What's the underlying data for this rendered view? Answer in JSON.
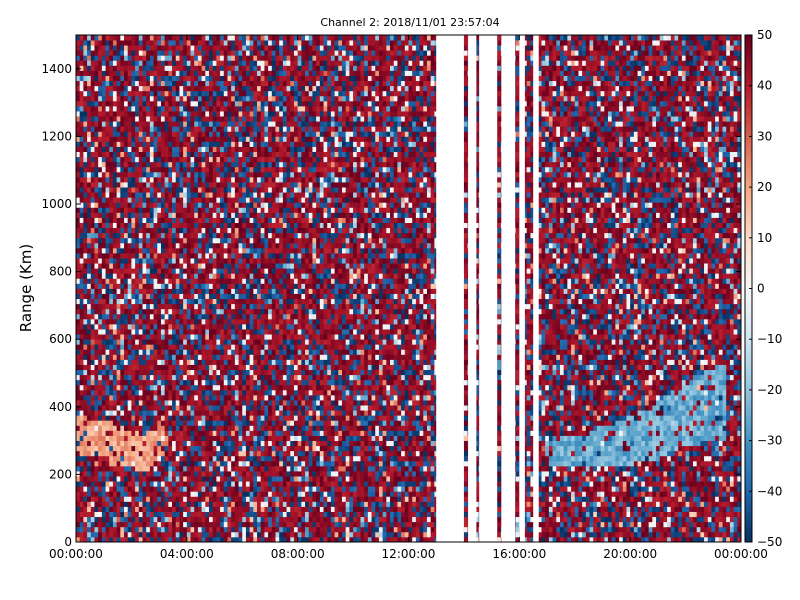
{
  "chart_data": {
    "type": "heatmap",
    "title": "Channel 2: 2018/11/01 23:57:04",
    "xlabel": "",
    "ylabel": "Range (Km)",
    "x_tick_labels": [
      "00:00:00",
      "04:00:00",
      "08:00:00",
      "12:00:00",
      "16:00:00",
      "20:00:00",
      "00:00:00"
    ],
    "x_range_hours": [
      0,
      24
    ],
    "y_ticks": [
      0,
      200,
      400,
      600,
      800,
      1000,
      1200,
      1400
    ],
    "ylim": [
      0,
      1500
    ],
    "colorbar": {
      "colormap": "RdBu_r",
      "range": [
        -50,
        50
      ],
      "ticks": [
        -50,
        -40,
        -30,
        -20,
        -10,
        0,
        10,
        20,
        30,
        40,
        50
      ],
      "colors": [
        "#053061",
        "#2166ac",
        "#4393c3",
        "#92c5de",
        "#d1e5f0",
        "#f7f7f7",
        "#fddbc7",
        "#f4a582",
        "#d6604d",
        "#b2182b",
        "#67001f"
      ]
    },
    "data_gaps_hours": [
      [
        13.0,
        14.0
      ],
      [
        14.15,
        14.45
      ],
      [
        14.55,
        15.2
      ],
      [
        15.35,
        15.85
      ],
      [
        16.0,
        16.2
      ],
      [
        16.5,
        16.7
      ]
    ],
    "features": [
      {
        "label": "",
        "x_hours": [
          0.0,
          1.2,
          2.5,
          3.2
        ],
        "y_km": [
          320,
          300,
          260,
          320
        ],
        "value": 20
      },
      {
        "label": "",
        "x_hours": [
          17.0,
          18.5,
          20.0,
          21.0,
          22.0,
          23.5
        ],
        "y_km": [
          270,
          270,
          300,
          330,
          380,
          420
        ],
        "value": -25
      }
    ]
  }
}
